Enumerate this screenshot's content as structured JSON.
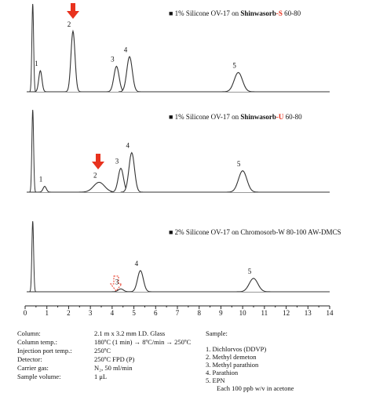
{
  "chart_data": {
    "type": "chromatogram",
    "xlim": [
      0,
      14
    ],
    "xticks": [
      0,
      1,
      2,
      3,
      4,
      5,
      6,
      7,
      8,
      9,
      10,
      11,
      12,
      13,
      14
    ],
    "ylim": [
      0,
      100
    ],
    "panels": [
      {
        "title": [
          "■ 1% Silicone OV-17 on ",
          "Shinwasorb",
          "-S",
          " 60-80"
        ],
        "solvent": {
          "rt": 0.35,
          "height": 100
        },
        "peaks": [
          {
            "label": "1",
            "rt": 0.7,
            "height": 24
          },
          {
            "label": "2",
            "rt": 2.2,
            "height": 69
          },
          {
            "label": "3",
            "rt": 4.2,
            "height": 29
          },
          {
            "label": "4",
            "rt": 4.8,
            "height": 40
          },
          {
            "label": "5",
            "rt": 9.8,
            "height": 22
          }
        ]
      },
      {
        "title": [
          "■ 1% Silicone OV-17 on ",
          "Shinwasorb",
          "-U",
          " 60-80"
        ],
        "solvent": {
          "rt": 0.35,
          "height": 100
        },
        "peaks": [
          {
            "label": "1",
            "rt": 0.9,
            "height": 7
          },
          {
            "label": "2",
            "rt": 3.4,
            "height": 12
          },
          {
            "label": "3",
            "rt": 4.4,
            "height": 29
          },
          {
            "label": "4",
            "rt": 4.9,
            "height": 48
          },
          {
            "label": "5",
            "rt": 10.0,
            "height": 26
          }
        ]
      },
      {
        "title": [
          "■ 2% Silicone OV-17 on Chromosorb-W 80-100 AW-DMCS"
        ],
        "solvent": {
          "rt": 0.35,
          "height": 100
        },
        "peaks": [
          {
            "label": "3",
            "rt": 4.4,
            "height": 4
          },
          {
            "label": "4",
            "rt": 5.3,
            "height": 30
          },
          {
            "label": "5",
            "rt": 10.5,
            "height": 19
          }
        ]
      }
    ],
    "conditions": [
      [
        "Column:",
        "2.1 m x 3.2 mm I.D.  Glass"
      ],
      [
        "Column temp.:",
        "180ºC (1 min) → 8ºC/min → 250ºC"
      ],
      [
        "Injection port temp.:",
        "250ºC"
      ],
      [
        "Detector:",
        "250ºC FPD (P)"
      ],
      [
        "Carrier gas:",
        "N₂, 50 ml/min"
      ],
      [
        "Sample volume:",
        "1 μL"
      ]
    ],
    "sample": {
      "heading": "Sample:",
      "items": [
        "1.  Dichlorvos (DDVP)",
        "2.  Methyl demeton",
        "3.  Methyl parathion",
        "4.  Parathion",
        "5.  EPN"
      ],
      "note": "Each 100 ppb w/v in acetone"
    }
  }
}
